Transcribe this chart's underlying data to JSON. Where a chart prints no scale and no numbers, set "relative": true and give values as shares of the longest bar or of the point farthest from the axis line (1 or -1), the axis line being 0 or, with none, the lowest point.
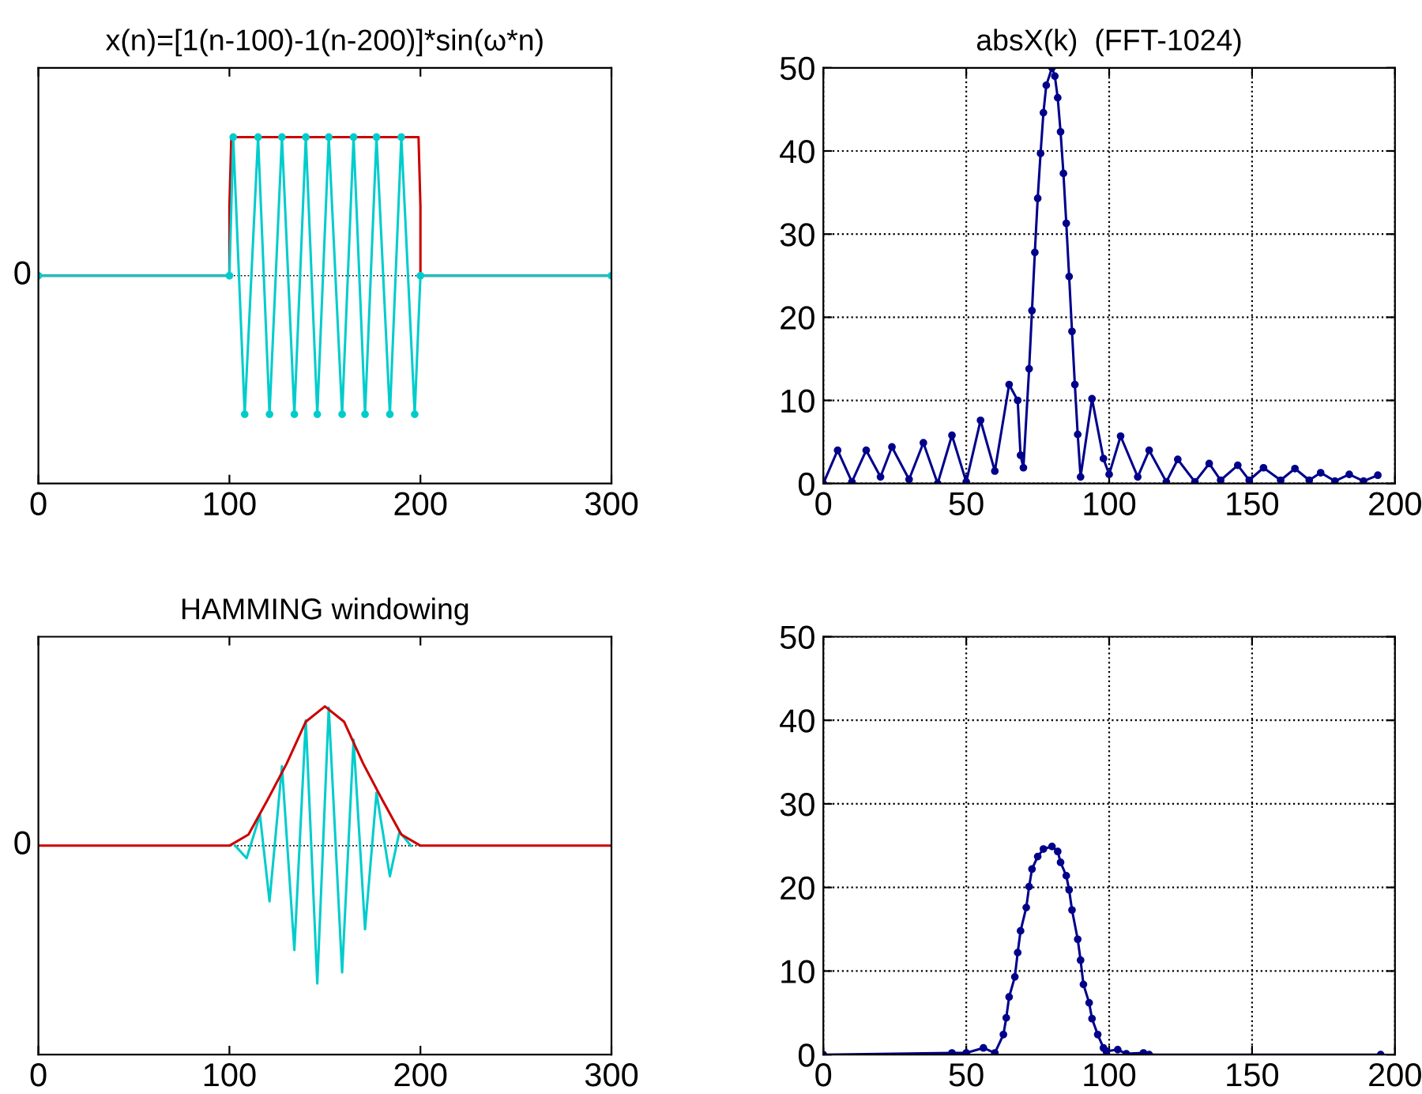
{
  "chart_data": [
    {
      "type": "line",
      "title": "x(n)=[1(n-100)-1(n-200)]*sin(ω*n)",
      "relative": true,
      "xlim": [
        0,
        300
      ],
      "xticks": [
        0,
        100,
        200,
        300
      ],
      "grid": false,
      "ref_lines": [
        {
          "axis": "y",
          "value": 0,
          "label": "0",
          "line_style": "dotted",
          "color": "#000000"
        }
      ],
      "series": [
        {
          "color": "#cc0000",
          "marker": "none",
          "x": [
            0,
            100,
            100,
            101,
            199,
            200,
            200,
            300
          ],
          "values": [
            0,
            0,
            0.5,
            1,
            1,
            0.5,
            0,
            0
          ]
        },
        {
          "color": "#00cccc",
          "marker": "circle",
          "x": [
            0,
            100,
            102,
            108,
            115,
            121,
            127.5,
            134,
            140,
            146,
            152,
            159,
            165,
            171,
            177,
            184,
            190,
            197,
            200,
            300
          ],
          "values": [
            0,
            0,
            1,
            -1,
            1,
            -1,
            1,
            -1,
            1,
            -1,
            1,
            -1,
            1,
            -1,
            1,
            -1,
            1,
            -1,
            0,
            0
          ]
        }
      ]
    },
    {
      "type": "line",
      "title": "absX(k)  (FFT-1024)",
      "xlim": [
        0,
        200
      ],
      "xticks": [
        0,
        50,
        100,
        150,
        200
      ],
      "ylim": [
        0,
        50
      ],
      "yticks": [
        0,
        10,
        20,
        30,
        40,
        50
      ],
      "grid": true,
      "series": [
        {
          "color": "#00008b",
          "marker": "circle",
          "x": [
            0,
            5,
            10,
            15,
            20,
            24,
            30,
            35,
            40,
            45,
            50,
            55,
            60,
            65,
            68,
            69,
            70,
            72,
            73,
            74,
            75,
            76,
            77,
            78,
            80,
            81,
            82,
            83,
            84,
            85,
            86,
            87,
            88,
            89,
            90,
            94,
            98,
            100,
            104,
            110,
            114,
            120,
            124,
            130,
            135,
            139,
            145,
            149,
            154,
            160,
            165,
            170,
            174,
            179,
            184,
            189,
            194
          ],
          "values": [
            0,
            4.0,
            0.2,
            4.0,
            0.8,
            4.4,
            0.5,
            4.9,
            0,
            5.8,
            0.2,
            7.6,
            1.5,
            11.9,
            10,
            3.4,
            1.9,
            13.8,
            20.8,
            27.8,
            34.3,
            39.7,
            44.6,
            47.9,
            50,
            49.0,
            46.4,
            42.3,
            37.3,
            31.3,
            24.9,
            18.3,
            11.9,
            5.9,
            0.8,
            10.2,
            3,
            1.1,
            5.7,
            0.8,
            4.0,
            0.2,
            2.9,
            0.2,
            2.4,
            0.4,
            2.2,
            0.4,
            1.9,
            0.4,
            1.8,
            0.4,
            1.3,
            0.3,
            1.1,
            0.3,
            1.0
          ]
        }
      ]
    },
    {
      "type": "line",
      "title": "HAMMING windowing",
      "relative": true,
      "xlim": [
        0,
        300
      ],
      "xticks": [
        0,
        100,
        200,
        300
      ],
      "grid": false,
      "ref_lines": [
        {
          "axis": "y",
          "value": 0,
          "label": "0",
          "line_style": "dotted",
          "color": "#000000"
        }
      ],
      "series": [
        {
          "color": "#00cccc",
          "marker": "none",
          "x": [
            103,
            109,
            116,
            121,
            127.5,
            134,
            140,
            146,
            152,
            159,
            165,
            171,
            177,
            184,
            189,
            195
          ],
          "values": [
            0,
            -0.09,
            0.22,
            -0.4,
            0.57,
            -0.75,
            0.9,
            -0.99,
            0.99,
            -0.91,
            0.76,
            -0.6,
            0.38,
            -0.22,
            0.1,
            0
          ]
        },
        {
          "color": "#cc0000",
          "marker": "none",
          "x": [
            0,
            100,
            110,
            120,
            130,
            140,
            150,
            160,
            170,
            180,
            190,
            200,
            300
          ],
          "values": [
            0,
            0,
            0.08,
            0.33,
            0.59,
            0.89,
            1,
            0.89,
            0.59,
            0.33,
            0.08,
            0,
            0
          ]
        }
      ]
    },
    {
      "type": "line",
      "xlim": [
        0,
        200
      ],
      "xticks": [
        0,
        50,
        100,
        150,
        200
      ],
      "ylim": [
        0,
        50
      ],
      "yticks": [
        0,
        10,
        20,
        30,
        40,
        50
      ],
      "grid": true,
      "series": [
        {
          "color": "#00008b",
          "marker": "circle",
          "x": [
            0,
            45,
            50,
            56,
            60,
            63,
            64,
            65,
            67,
            68,
            69,
            71,
            72,
            73,
            75,
            77,
            80,
            82,
            83,
            85,
            86,
            87,
            89,
            90,
            91,
            93,
            94,
            96,
            98,
            99,
            103,
            106,
            112,
            114,
            195
          ],
          "values": [
            0,
            0.2,
            0.2,
            0.8,
            0.2,
            2.4,
            4.4,
            6.9,
            9.3,
            12.2,
            14.8,
            17.6,
            20.1,
            22.2,
            23.7,
            24.6,
            24.9,
            24.3,
            23.0,
            21.4,
            19.7,
            17.3,
            13.8,
            11.3,
            8.4,
            6.2,
            4.3,
            2.4,
            0.8,
            0.4,
            0.6,
            0.1,
            0.2,
            0,
            0
          ]
        }
      ]
    }
  ]
}
